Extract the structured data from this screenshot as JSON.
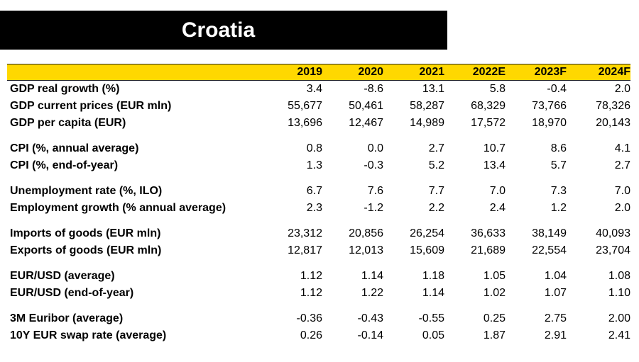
{
  "title": "Croatia",
  "header_color": "#ffd800",
  "years": [
    "2019",
    "2020",
    "2021",
    "2022E",
    "2023F",
    "2024F"
  ],
  "groups": [
    [
      {
        "label": "GDP real growth (%)",
        "values": [
          "3.4",
          "-8.6",
          "13.1",
          "5.8",
          "-0.4",
          "2.0"
        ]
      },
      {
        "label": "GDP current prices (EUR mln)",
        "values": [
          "55,677",
          "50,461",
          "58,287",
          "68,329",
          "73,766",
          "78,326"
        ]
      },
      {
        "label": "GDP per capita (EUR)",
        "values": [
          "13,696",
          "12,467",
          "14,989",
          "17,572",
          "18,970",
          "20,143"
        ]
      }
    ],
    [
      {
        "label": "CPI (%, annual average)",
        "values": [
          "0.8",
          "0.0",
          "2.7",
          "10.7",
          "8.6",
          "4.1"
        ]
      },
      {
        "label": "CPI (%, end-of-year)",
        "values": [
          "1.3",
          "-0.3",
          "5.2",
          "13.4",
          "5.7",
          "2.7"
        ]
      }
    ],
    [
      {
        "label": "Unemployment rate (%, ILO)",
        "values": [
          "6.7",
          "7.6",
          "7.7",
          "7.0",
          "7.3",
          "7.0"
        ]
      },
      {
        "label": "Employment growth (% annual average)",
        "values": [
          "2.3",
          "-1.2",
          "2.2",
          "2.4",
          "1.2",
          "2.0"
        ]
      }
    ],
    [
      {
        "label": "Imports of goods (EUR mln)",
        "values": [
          "23,312",
          "20,856",
          "26,254",
          "36,633",
          "38,149",
          "40,093"
        ]
      },
      {
        "label": "Exports of goods (EUR mln)",
        "values": [
          "12,817",
          "12,013",
          "15,609",
          "21,689",
          "22,554",
          "23,704"
        ]
      }
    ],
    [
      {
        "label": "EUR/USD (average)",
        "values": [
          "1.12",
          "1.14",
          "1.18",
          "1.05",
          "1.04",
          "1.08"
        ]
      },
      {
        "label": "EUR/USD (end-of-year)",
        "values": [
          "1.12",
          "1.22",
          "1.14",
          "1.02",
          "1.07",
          "1.10"
        ]
      }
    ],
    [
      {
        "label": "3M Euribor (average)",
        "values": [
          "-0.36",
          "-0.43",
          "-0.55",
          "0.25",
          "2.75",
          "2.00"
        ]
      },
      {
        "label": "10Y EUR swap rate (average)",
        "values": [
          "0.26",
          "-0.14",
          "0.05",
          "1.87",
          "2.91",
          "2.41"
        ]
      }
    ]
  ]
}
